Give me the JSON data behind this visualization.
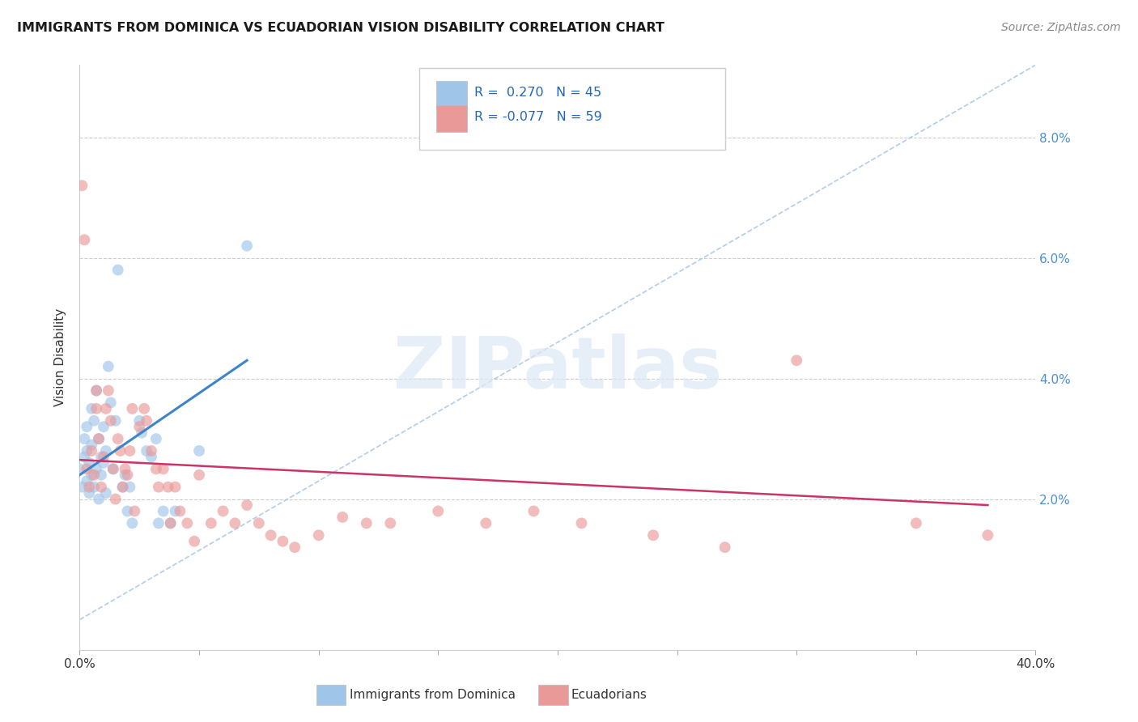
{
  "title": "IMMIGRANTS FROM DOMINICA VS ECUADORIAN VISION DISABILITY CORRELATION CHART",
  "source": "Source: ZipAtlas.com",
  "ylabel": "Vision Disability",
  "ytick_labels": [
    "2.0%",
    "4.0%",
    "6.0%",
    "8.0%"
  ],
  "ytick_values": [
    0.02,
    0.04,
    0.06,
    0.08
  ],
  "xlim": [
    0.0,
    0.4
  ],
  "ylim": [
    -0.005,
    0.092
  ],
  "legend_blue_r": "R =  0.270",
  "legend_blue_n": "N = 45",
  "legend_pink_r": "R = -0.077",
  "legend_pink_n": "N = 59",
  "blue_color": "#9fc5e8",
  "pink_color": "#ea9999",
  "blue_line_color": "#3d85c8",
  "pink_line_color": "#cc3366",
  "diag_line_color": "#a8c8e8",
  "background_color": "#ffffff",
  "grid_color": "#cccccc",
  "blue_scatter_x": [
    0.0,
    0.001,
    0.002,
    0.002,
    0.003,
    0.003,
    0.003,
    0.004,
    0.004,
    0.005,
    0.005,
    0.005,
    0.006,
    0.006,
    0.007,
    0.007,
    0.008,
    0.008,
    0.009,
    0.009,
    0.01,
    0.01,
    0.011,
    0.011,
    0.012,
    0.013,
    0.014,
    0.015,
    0.016,
    0.018,
    0.019,
    0.02,
    0.021,
    0.022,
    0.025,
    0.026,
    0.028,
    0.03,
    0.032,
    0.033,
    0.035,
    0.038,
    0.04,
    0.05,
    0.07
  ],
  "blue_scatter_y": [
    0.025,
    0.022,
    0.027,
    0.03,
    0.023,
    0.028,
    0.032,
    0.021,
    0.026,
    0.024,
    0.029,
    0.035,
    0.022,
    0.033,
    0.025,
    0.038,
    0.02,
    0.03,
    0.024,
    0.027,
    0.026,
    0.032,
    0.021,
    0.028,
    0.042,
    0.036,
    0.025,
    0.033,
    0.058,
    0.022,
    0.024,
    0.018,
    0.022,
    0.016,
    0.033,
    0.031,
    0.028,
    0.027,
    0.03,
    0.016,
    0.018,
    0.016,
    0.018,
    0.028,
    0.062
  ],
  "pink_scatter_x": [
    0.001,
    0.002,
    0.003,
    0.004,
    0.005,
    0.006,
    0.007,
    0.007,
    0.008,
    0.009,
    0.01,
    0.011,
    0.012,
    0.013,
    0.014,
    0.015,
    0.016,
    0.017,
    0.018,
    0.019,
    0.02,
    0.021,
    0.022,
    0.023,
    0.025,
    0.027,
    0.028,
    0.03,
    0.032,
    0.033,
    0.035,
    0.037,
    0.038,
    0.04,
    0.042,
    0.045,
    0.048,
    0.05,
    0.055,
    0.06,
    0.065,
    0.07,
    0.075,
    0.08,
    0.085,
    0.09,
    0.1,
    0.11,
    0.12,
    0.13,
    0.15,
    0.17,
    0.19,
    0.21,
    0.24,
    0.27,
    0.3,
    0.35,
    0.38
  ],
  "pink_scatter_y": [
    0.072,
    0.063,
    0.025,
    0.022,
    0.028,
    0.024,
    0.038,
    0.035,
    0.03,
    0.022,
    0.027,
    0.035,
    0.038,
    0.033,
    0.025,
    0.02,
    0.03,
    0.028,
    0.022,
    0.025,
    0.024,
    0.028,
    0.035,
    0.018,
    0.032,
    0.035,
    0.033,
    0.028,
    0.025,
    0.022,
    0.025,
    0.022,
    0.016,
    0.022,
    0.018,
    0.016,
    0.013,
    0.024,
    0.016,
    0.018,
    0.016,
    0.019,
    0.016,
    0.014,
    0.013,
    0.012,
    0.014,
    0.017,
    0.016,
    0.016,
    0.018,
    0.016,
    0.018,
    0.016,
    0.014,
    0.012,
    0.043,
    0.016,
    0.014
  ],
  "blue_trendline_x": [
    0.0,
    0.07
  ],
  "blue_trendline_y": [
    0.024,
    0.043
  ],
  "pink_trendline_x": [
    0.0,
    0.38
  ],
  "pink_trendline_y": [
    0.0265,
    0.019
  ],
  "diag_line_x": [
    0.0,
    0.4
  ],
  "diag_line_y": [
    0.0,
    0.092
  ],
  "watermark_text": "ZIPatlas",
  "legend_label_blue": "Immigrants from Dominica",
  "legend_label_pink": "Ecuadorians"
}
